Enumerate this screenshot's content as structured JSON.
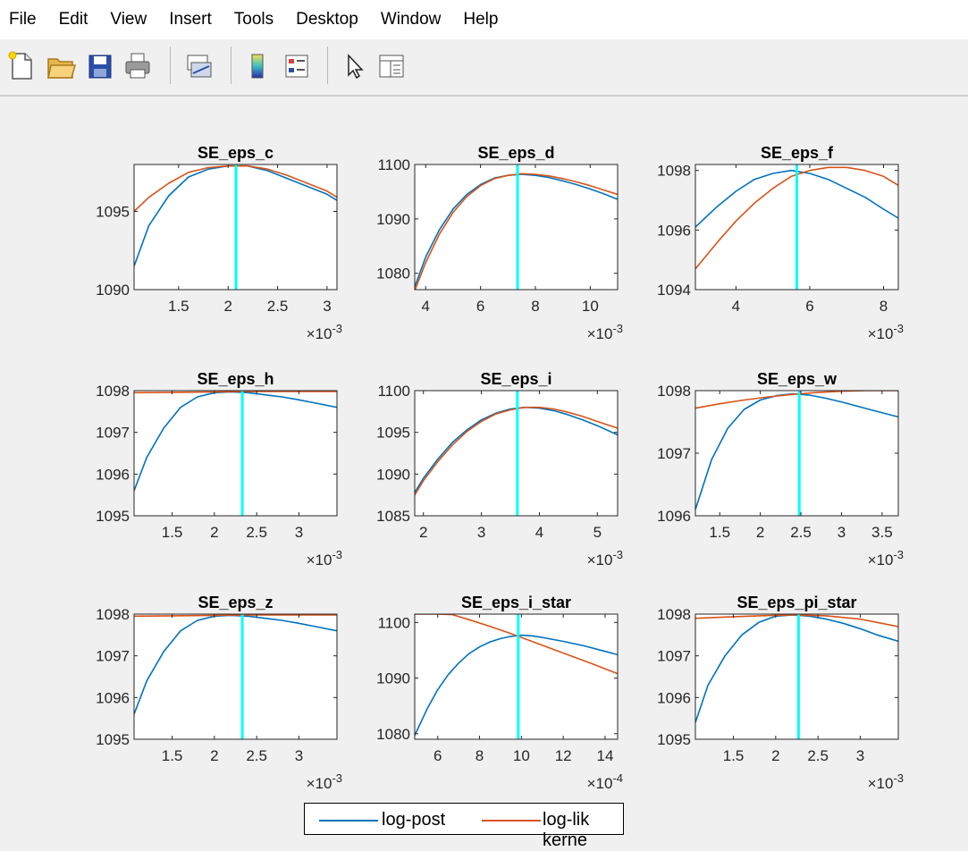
{
  "menu": [
    "File",
    "Edit",
    "View",
    "Insert",
    "Tools",
    "Desktop",
    "Window",
    "Help"
  ],
  "toolbar": {
    "buttons": [
      "new-file-icon",
      "open-folder-icon",
      "save-icon",
      "print-icon",
      "link-plot-icon",
      "colorbar-icon",
      "legend-icon",
      "edit-plot-arrow-icon",
      "property-inspector-icon"
    ]
  },
  "colors": {
    "post": "#0072BD",
    "lik": "#D95319",
    "mode": "#00FFFF"
  },
  "legend": {
    "items": [
      "log-post",
      "log-lik kerne"
    ]
  },
  "chart_data": [
    {
      "type": "line",
      "title": "SE_eps_c",
      "xlim": [
        1.05,
        3.1
      ],
      "ylim": [
        1090,
        1098
      ],
      "mode_x": 2.08,
      "xticks": [
        1.5,
        2,
        2.5,
        3
      ],
      "xtick_labels": [
        "1.5",
        "2",
        "2.5",
        "3"
      ],
      "yticks": [
        1090,
        1095
      ],
      "ytick_labels": [
        "1090",
        "1095"
      ],
      "exponent": "-3",
      "series": [
        {
          "name": "log-post",
          "x": [
            1.05,
            1.2,
            1.4,
            1.6,
            1.8,
            2.0,
            2.2,
            2.4,
            2.6,
            2.8,
            3.0,
            3.1
          ],
          "y": [
            1091.5,
            1094.1,
            1096.0,
            1097.2,
            1097.7,
            1097.9,
            1097.9,
            1097.6,
            1097.1,
            1096.6,
            1096.1,
            1095.7
          ]
        },
        {
          "name": "log-lik kerne",
          "x": [
            1.05,
            1.2,
            1.4,
            1.6,
            1.8,
            2.0,
            2.2,
            2.4,
            2.6,
            2.8,
            3.0,
            3.1
          ],
          "y": [
            1095.0,
            1095.9,
            1096.8,
            1097.5,
            1097.8,
            1097.9,
            1097.9,
            1097.7,
            1097.3,
            1096.8,
            1096.3,
            1095.9
          ]
        }
      ]
    },
    {
      "type": "line",
      "title": "SE_eps_d",
      "xlim": [
        3.6,
        11
      ],
      "ylim": [
        1077,
        1100
      ],
      "mode_x": 7.35,
      "xticks": [
        4,
        6,
        8,
        10
      ],
      "xtick_labels": [
        "4",
        "6",
        "8",
        "10"
      ],
      "yticks": [
        1080,
        1090,
        1100
      ],
      "ytick_labels": [
        "1080",
        "1090",
        "1100"
      ],
      "exponent": "-3",
      "series": [
        {
          "name": "log-post",
          "x": [
            3.6,
            4.0,
            4.5,
            5.0,
            5.5,
            6.0,
            6.5,
            7.0,
            7.5,
            8.0,
            8.5,
            9.0,
            9.5,
            10.0,
            10.5,
            11.0
          ],
          "y": [
            1077.5,
            1083.0,
            1088.0,
            1091.8,
            1094.5,
            1096.3,
            1097.5,
            1098.0,
            1098.2,
            1098.0,
            1097.6,
            1097.0,
            1096.3,
            1095.5,
            1094.6,
            1093.6
          ]
        },
        {
          "name": "log-lik kerne",
          "x": [
            3.6,
            4.0,
            4.5,
            5.0,
            5.5,
            6.0,
            6.5,
            7.0,
            7.5,
            8.0,
            8.5,
            9.0,
            9.5,
            10.0,
            10.5,
            11.0
          ],
          "y": [
            1076.8,
            1082.0,
            1087.2,
            1091.2,
            1094.1,
            1096.1,
            1097.4,
            1098.0,
            1098.3,
            1098.2,
            1097.9,
            1097.4,
            1096.8,
            1096.1,
            1095.3,
            1094.5
          ]
        }
      ]
    },
    {
      "type": "line",
      "title": "SE_eps_f",
      "xlim": [
        2.9,
        8.4
      ],
      "ylim": [
        1094,
        1098.2
      ],
      "mode_x": 5.65,
      "xticks": [
        4,
        6,
        8
      ],
      "xtick_labels": [
        "4",
        "6",
        "8"
      ],
      "yticks": [
        1094,
        1096,
        1098
      ],
      "ytick_labels": [
        "1094",
        "1096",
        "1098"
      ],
      "exponent": "-3",
      "series": [
        {
          "name": "log-post",
          "x": [
            2.9,
            3.5,
            4.0,
            4.5,
            5.0,
            5.5,
            6.0,
            6.5,
            7.0,
            7.5,
            8.0,
            8.4
          ],
          "y": [
            1096.1,
            1096.8,
            1097.3,
            1097.7,
            1097.9,
            1098.0,
            1097.9,
            1097.7,
            1097.4,
            1097.1,
            1096.7,
            1096.4
          ]
        },
        {
          "name": "log-lik kerne",
          "x": [
            2.9,
            3.5,
            4.0,
            4.5,
            5.0,
            5.5,
            6.0,
            6.5,
            7.0,
            7.5,
            8.0,
            8.4
          ],
          "y": [
            1094.7,
            1095.6,
            1096.3,
            1096.9,
            1097.4,
            1097.8,
            1098.0,
            1098.1,
            1098.1,
            1098.0,
            1097.8,
            1097.5
          ]
        }
      ]
    },
    {
      "type": "line",
      "title": "SE_eps_h",
      "xlim": [
        1.05,
        3.45
      ],
      "ylim": [
        1095,
        1098
      ],
      "mode_x": 2.33,
      "xticks": [
        1.5,
        2,
        2.5,
        3
      ],
      "xtick_labels": [
        "1.5",
        "2",
        "2.5",
        "3"
      ],
      "yticks": [
        1095,
        1096,
        1097,
        1098
      ],
      "ytick_labels": [
        "1095",
        "1096",
        "1097",
        "1098"
      ],
      "exponent": "-3",
      "series": [
        {
          "name": "log-post",
          "x": [
            1.05,
            1.2,
            1.4,
            1.6,
            1.8,
            2.0,
            2.2,
            2.4,
            2.6,
            2.8,
            3.0,
            3.2,
            3.45
          ],
          "y": [
            1095.6,
            1096.4,
            1097.1,
            1097.6,
            1097.85,
            1097.95,
            1097.97,
            1097.95,
            1097.9,
            1097.85,
            1097.78,
            1097.7,
            1097.6
          ]
        },
        {
          "name": "log-lik kerne",
          "x": [
            1.05,
            1.5,
            2.0,
            2.5,
            3.0,
            3.45
          ],
          "y": [
            1097.95,
            1097.96,
            1097.97,
            1097.98,
            1097.98,
            1097.98
          ]
        }
      ]
    },
    {
      "type": "line",
      "title": "SE_eps_i",
      "xlim": [
        1.85,
        5.35
      ],
      "ylim": [
        1085,
        1100
      ],
      "mode_x": 3.62,
      "xticks": [
        2,
        3,
        4,
        5
      ],
      "xtick_labels": [
        "2",
        "3",
        "4",
        "5"
      ],
      "yticks": [
        1085,
        1090,
        1095,
        1100
      ],
      "ytick_labels": [
        "1085",
        "1090",
        "1095",
        "1100"
      ],
      "exponent": "-3",
      "series": [
        {
          "name": "log-post",
          "x": [
            1.85,
            2.0,
            2.25,
            2.5,
            2.75,
            3.0,
            3.25,
            3.5,
            3.75,
            4.0,
            4.25,
            4.5,
            4.75,
            5.0,
            5.35
          ],
          "y": [
            1087.8,
            1089.5,
            1091.8,
            1093.8,
            1095.3,
            1096.5,
            1097.3,
            1097.8,
            1098.0,
            1097.9,
            1097.6,
            1097.1,
            1096.5,
            1095.8,
            1094.7
          ]
        },
        {
          "name": "log-lik kerne",
          "x": [
            1.85,
            2.0,
            2.25,
            2.5,
            2.75,
            3.0,
            3.25,
            3.5,
            3.75,
            4.0,
            4.25,
            4.5,
            4.75,
            5.0,
            5.35
          ],
          "y": [
            1087.5,
            1089.2,
            1091.5,
            1093.5,
            1095.1,
            1096.3,
            1097.2,
            1097.7,
            1098.0,
            1098.0,
            1097.8,
            1097.4,
            1096.9,
            1096.3,
            1095.5
          ]
        }
      ]
    },
    {
      "type": "line",
      "title": "SE_eps_w",
      "xlim": [
        1.2,
        3.7
      ],
      "ylim": [
        1096,
        1098
      ],
      "mode_x": 2.48,
      "xticks": [
        1.5,
        2,
        2.5,
        3,
        3.5
      ],
      "xtick_labels": [
        "1.5",
        "2",
        "2.5",
        "3",
        "3.5"
      ],
      "yticks": [
        1096,
        1097,
        1098
      ],
      "ytick_labels": [
        "1096",
        "1097",
        "1098"
      ],
      "exponent": "-3",
      "series": [
        {
          "name": "log-post",
          "x": [
            1.2,
            1.4,
            1.6,
            1.8,
            2.0,
            2.2,
            2.4,
            2.6,
            2.8,
            3.0,
            3.2,
            3.4,
            3.7
          ],
          "y": [
            1096.1,
            1096.9,
            1097.4,
            1097.7,
            1097.85,
            1097.92,
            1097.95,
            1097.93,
            1097.88,
            1097.82,
            1097.75,
            1097.68,
            1097.58
          ]
        },
        {
          "name": "log-lik kerne",
          "x": [
            1.2,
            1.5,
            1.8,
            2.1,
            2.4,
            2.7,
            3.0,
            3.3,
            3.7
          ],
          "y": [
            1097.72,
            1097.79,
            1097.85,
            1097.9,
            1097.94,
            1097.97,
            1097.99,
            1098.0,
            1098.0
          ]
        }
      ]
    },
    {
      "type": "line",
      "title": "SE_eps_z",
      "xlim": [
        1.05,
        3.45
      ],
      "ylim": [
        1095,
        1098
      ],
      "mode_x": 2.33,
      "xticks": [
        1.5,
        2,
        2.5,
        3
      ],
      "xtick_labels": [
        "1.5",
        "2",
        "2.5",
        "3"
      ],
      "yticks": [
        1095,
        1096,
        1097,
        1098
      ],
      "ytick_labels": [
        "1095",
        "1096",
        "1097",
        "1098"
      ],
      "exponent": "-3",
      "series": [
        {
          "name": "log-post",
          "x": [
            1.05,
            1.2,
            1.4,
            1.6,
            1.8,
            2.0,
            2.2,
            2.4,
            2.6,
            2.8,
            3.0,
            3.2,
            3.45
          ],
          "y": [
            1095.6,
            1096.4,
            1097.1,
            1097.6,
            1097.85,
            1097.95,
            1097.97,
            1097.95,
            1097.9,
            1097.85,
            1097.78,
            1097.7,
            1097.6
          ]
        },
        {
          "name": "log-lik kerne",
          "x": [
            1.05,
            1.5,
            2.0,
            2.5,
            3.0,
            3.45
          ],
          "y": [
            1097.95,
            1097.96,
            1097.97,
            1097.98,
            1097.98,
            1097.98
          ]
        }
      ]
    },
    {
      "type": "line",
      "title": "SE_eps_i_star",
      "xlim": [
        4.9,
        14.6
      ],
      "ylim": [
        1079,
        1101.5
      ],
      "mode_x": 9.85,
      "xticks": [
        6,
        8,
        10,
        12,
        14
      ],
      "xtick_labels": [
        "6",
        "8",
        "10",
        "12",
        "14"
      ],
      "yticks": [
        1080,
        1090,
        1100
      ],
      "ytick_labels": [
        "1080",
        "1090",
        "1100"
      ],
      "exponent": "-4",
      "series": [
        {
          "name": "log-post",
          "x": [
            4.9,
            5.5,
            6.0,
            6.5,
            7.0,
            7.5,
            8.0,
            8.5,
            9.0,
            9.5,
            10.0,
            10.5,
            11.0,
            12.0,
            13.0,
            14.0,
            14.6
          ],
          "y": [
            1079.7,
            1084.5,
            1087.9,
            1090.6,
            1092.7,
            1094.4,
            1095.6,
            1096.5,
            1097.1,
            1097.5,
            1097.7,
            1097.6,
            1097.3,
            1096.6,
            1095.8,
            1094.8,
            1094.2
          ]
        },
        {
          "name": "log-lik kerne",
          "x": [
            4.9,
            6.0,
            6.7,
            7.5,
            8.5,
            9.5,
            10.5,
            11.5,
            12.5,
            13.5,
            14.6
          ],
          "y": [
            1101.5,
            1101.5,
            1101.4,
            1100.5,
            1099.3,
            1098.0,
            1096.6,
            1095.2,
            1093.8,
            1092.4,
            1090.8
          ]
        }
      ]
    },
    {
      "type": "line",
      "title": "SE_eps_pi_star",
      "xlim": [
        1.05,
        3.45
      ],
      "ylim": [
        1095,
        1098
      ],
      "mode_x": 2.27,
      "xticks": [
        1.5,
        2,
        2.5,
        3
      ],
      "xtick_labels": [
        "1.5",
        "2",
        "2.5",
        "3"
      ],
      "yticks": [
        1095,
        1096,
        1097,
        1098
      ],
      "ytick_labels": [
        "1095",
        "1096",
        "1097",
        "1098"
      ],
      "exponent": "-3",
      "series": [
        {
          "name": "log-post",
          "x": [
            1.05,
            1.2,
            1.4,
            1.6,
            1.8,
            2.0,
            2.2,
            2.4,
            2.6,
            2.8,
            3.0,
            3.2,
            3.45
          ],
          "y": [
            1095.4,
            1096.3,
            1097.0,
            1097.5,
            1097.8,
            1097.95,
            1097.98,
            1097.95,
            1097.88,
            1097.78,
            1097.65,
            1097.5,
            1097.35
          ]
        },
        {
          "name": "log-lik kerne",
          "x": [
            1.05,
            1.4,
            1.8,
            2.2,
            2.6,
            3.0,
            3.2,
            3.45
          ],
          "y": [
            1097.9,
            1097.93,
            1097.96,
            1097.98,
            1097.96,
            1097.88,
            1097.8,
            1097.7
          ]
        }
      ]
    }
  ]
}
